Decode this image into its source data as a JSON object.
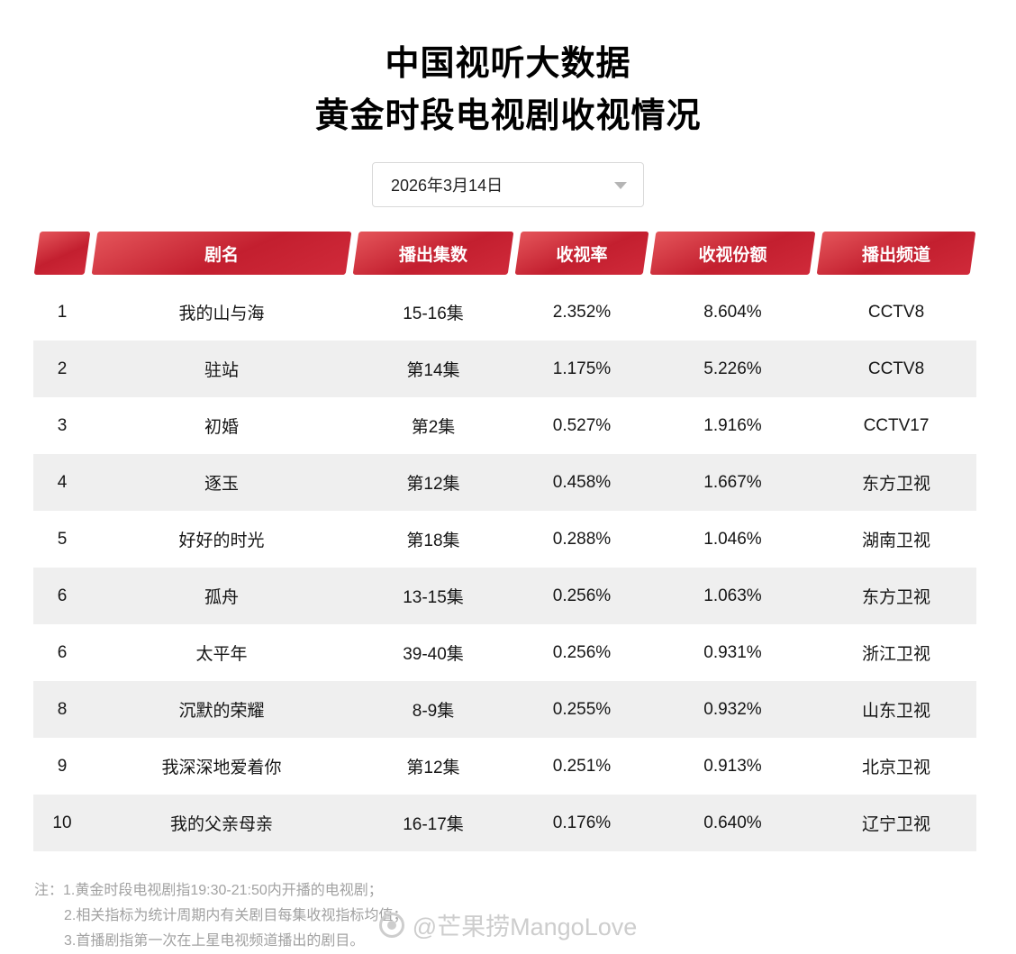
{
  "title": {
    "line1": "中国视听大数据",
    "line2": "黄金时段电视剧收视情况"
  },
  "date_selector": {
    "value": "2026年3月14日"
  },
  "table": {
    "headers": [
      "",
      "剧名",
      "播出集数",
      "收视率",
      "收视份额",
      "播出频道"
    ],
    "rows": [
      {
        "rank": "1",
        "name": "我的山与海",
        "episodes": "15-16集",
        "rating": "2.352%",
        "share": "8.604%",
        "channel": "CCTV8"
      },
      {
        "rank": "2",
        "name": "驻站",
        "episodes": "第14集",
        "rating": "1.175%",
        "share": "5.226%",
        "channel": "CCTV8"
      },
      {
        "rank": "3",
        "name": "初婚",
        "episodes": "第2集",
        "rating": "0.527%",
        "share": "1.916%",
        "channel": "CCTV17"
      },
      {
        "rank": "4",
        "name": "逐玉",
        "episodes": "第12集",
        "rating": "0.458%",
        "share": "1.667%",
        "channel": "东方卫视"
      },
      {
        "rank": "5",
        "name": "好好的时光",
        "episodes": "第18集",
        "rating": "0.288%",
        "share": "1.046%",
        "channel": "湖南卫视"
      },
      {
        "rank": "6",
        "name": "孤舟",
        "episodes": "13-15集",
        "rating": "0.256%",
        "share": "1.063%",
        "channel": "东方卫视"
      },
      {
        "rank": "6",
        "name": "太平年",
        "episodes": "39-40集",
        "rating": "0.256%",
        "share": "0.931%",
        "channel": "浙江卫视"
      },
      {
        "rank": "8",
        "name": "沉默的荣耀",
        "episodes": "8-9集",
        "rating": "0.255%",
        "share": "0.932%",
        "channel": "山东卫视"
      },
      {
        "rank": "9",
        "name": "我深深地爱着你",
        "episodes": "第12集",
        "rating": "0.251%",
        "share": "0.913%",
        "channel": "北京卫视"
      },
      {
        "rank": "10",
        "name": "我的父亲母亲",
        "episodes": "16-17集",
        "rating": "0.176%",
        "share": "0.640%",
        "channel": "辽宁卫视"
      }
    ]
  },
  "notes": {
    "line1": "注：1.黄金时段电视剧指19:30-21:50内开播的电视剧；",
    "line2": "2.相关指标为统计周期内有关剧目每集收视指标均值；",
    "line3": "3.首播剧指第一次在上星电视频道播出的剧目。"
  },
  "watermark": {
    "text": "@芒果捞MangoLove"
  },
  "colors": {
    "header_red": "#c31f2f",
    "header_red_light": "#e4555a",
    "row_stripe": "#efefef",
    "note_gray": "#a2a2a2",
    "watermark_gray": "#cdcdcd"
  }
}
